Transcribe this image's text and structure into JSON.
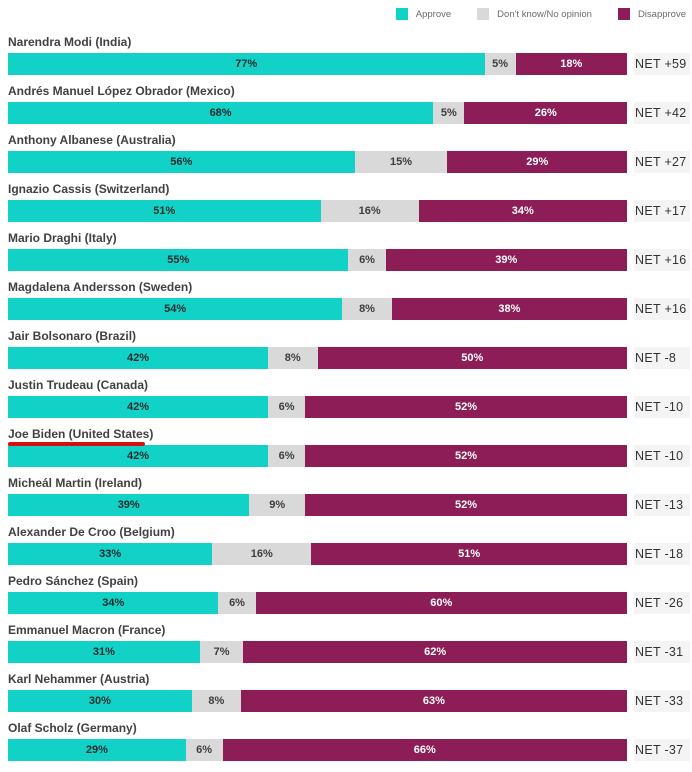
{
  "legend": {
    "items": [
      {
        "label": "Approve",
        "color": "#12d2c7"
      },
      {
        "label": "Don't know/No opinion",
        "color": "#d9d9d9"
      },
      {
        "label": "Disapprove",
        "color": "#8c1d56"
      }
    ]
  },
  "colors": {
    "approve": "#12d2c7",
    "dont_know": "#d9d9d9",
    "disapprove": "#8c1d56",
    "net_chip_bg": "#f4f4f4",
    "annotation_red": "#d60f0f"
  },
  "annotation": {
    "type": "red-underline",
    "target": "Joe Biden (United States)"
  },
  "chart_data": {
    "type": "bar",
    "orientation": "horizontal",
    "stacked": true,
    "categories": [
      "Narendra Modi (India)",
      "Andrés Manuel López Obrador (Mexico)",
      "Anthony Albanese (Australia)",
      "Ignazio Cassis (Switzerland)",
      "Mario Draghi (Italy)",
      "Magdalena Andersson (Sweden)",
      "Jair Bolsonaro (Brazil)",
      "Justin Trudeau (Canada)",
      "Joe Biden (United States)",
      "Micheál Martin (Ireland)",
      "Alexander De Croo (Belgium)",
      "Pedro Sánchez (Spain)",
      "Emmanuel Macron (France)",
      "Karl Nehammer (Austria)",
      "Olaf Scholz (Germany)"
    ],
    "series": [
      {
        "name": "Approve",
        "values": [
          77,
          68,
          56,
          51,
          55,
          54,
          42,
          42,
          42,
          39,
          33,
          34,
          31,
          30,
          29
        ]
      },
      {
        "name": "Don't know/No opinion",
        "values": [
          5,
          5,
          15,
          16,
          6,
          8,
          8,
          6,
          6,
          9,
          16,
          6,
          7,
          8,
          6
        ]
      },
      {
        "name": "Disapprove",
        "values": [
          18,
          26,
          29,
          34,
          39,
          38,
          50,
          52,
          52,
          52,
          51,
          60,
          62,
          63,
          66
        ]
      }
    ],
    "net_labels": [
      "NET +59",
      "NET +42",
      "NET +27",
      "NET +17",
      "NET +16",
      "NET +16",
      "NET -8",
      "NET -10",
      "NET -10",
      "NET -13",
      "NET -18",
      "NET -26",
      "NET -31",
      "NET -33",
      "NET -37"
    ],
    "xlim": [
      0,
      100
    ],
    "grid": false,
    "legend_position": "top-right",
    "title": "",
    "xlabel": "",
    "ylabel": ""
  },
  "rows": [
    {
      "label": "Narendra Modi (India)",
      "approve": 77,
      "dk": 5,
      "dis": 18,
      "approve_pct": "77%",
      "dk_pct": "5%",
      "dis_pct": "18%",
      "net": "NET +59"
    },
    {
      "label": "Andrés Manuel López Obrador (Mexico)",
      "approve": 68,
      "dk": 5,
      "dis": 26,
      "approve_pct": "68%",
      "dk_pct": "5%",
      "dis_pct": "26%",
      "net": "NET +42"
    },
    {
      "label": "Anthony Albanese (Australia)",
      "approve": 56,
      "dk": 15,
      "dis": 29,
      "approve_pct": "56%",
      "dk_pct": "15%",
      "dis_pct": "29%",
      "net": "NET +27"
    },
    {
      "label": "Ignazio Cassis (Switzerland)",
      "approve": 51,
      "dk": 16,
      "dis": 34,
      "approve_pct": "51%",
      "dk_pct": "16%",
      "dis_pct": "34%",
      "net": "NET +17"
    },
    {
      "label": "Mario Draghi (Italy)",
      "approve": 55,
      "dk": 6,
      "dis": 39,
      "approve_pct": "55%",
      "dk_pct": "6%",
      "dis_pct": "39%",
      "net": "NET +16"
    },
    {
      "label": "Magdalena Andersson (Sweden)",
      "approve": 54,
      "dk": 8,
      "dis": 38,
      "approve_pct": "54%",
      "dk_pct": "8%",
      "dis_pct": "38%",
      "net": "NET +16"
    },
    {
      "label": "Jair Bolsonaro (Brazil)",
      "approve": 42,
      "dk": 8,
      "dis": 50,
      "approve_pct": "42%",
      "dk_pct": "8%",
      "dis_pct": "50%",
      "net": "NET -8"
    },
    {
      "label": "Justin Trudeau (Canada)",
      "approve": 42,
      "dk": 6,
      "dis": 52,
      "approve_pct": "42%",
      "dk_pct": "6%",
      "dis_pct": "52%",
      "net": "NET -10"
    },
    {
      "label": "Joe Biden (United States)",
      "approve": 42,
      "dk": 6,
      "dis": 52,
      "approve_pct": "42%",
      "dk_pct": "6%",
      "dis_pct": "52%",
      "net": "NET -10"
    },
    {
      "label": "Micheál Martin (Ireland)",
      "approve": 39,
      "dk": 9,
      "dis": 52,
      "approve_pct": "39%",
      "dk_pct": "9%",
      "dis_pct": "52%",
      "net": "NET -13"
    },
    {
      "label": "Alexander De Croo (Belgium)",
      "approve": 33,
      "dk": 16,
      "dis": 51,
      "approve_pct": "33%",
      "dk_pct": "16%",
      "dis_pct": "51%",
      "net": "NET -18"
    },
    {
      "label": "Pedro Sánchez (Spain)",
      "approve": 34,
      "dk": 6,
      "dis": 60,
      "approve_pct": "34%",
      "dk_pct": "6%",
      "dis_pct": "60%",
      "net": "NET -26"
    },
    {
      "label": "Emmanuel Macron (France)",
      "approve": 31,
      "dk": 7,
      "dis": 62,
      "approve_pct": "31%",
      "dk_pct": "7%",
      "dis_pct": "62%",
      "net": "NET -31"
    },
    {
      "label": "Karl Nehammer (Austria)",
      "approve": 30,
      "dk": 8,
      "dis": 63,
      "approve_pct": "30%",
      "dk_pct": "8%",
      "dis_pct": "63%",
      "net": "NET -33"
    },
    {
      "label": "Olaf Scholz (Germany)",
      "approve": 29,
      "dk": 6,
      "dis": 66,
      "approve_pct": "29%",
      "dk_pct": "6%",
      "dis_pct": "66%",
      "net": "NET -37"
    }
  ]
}
